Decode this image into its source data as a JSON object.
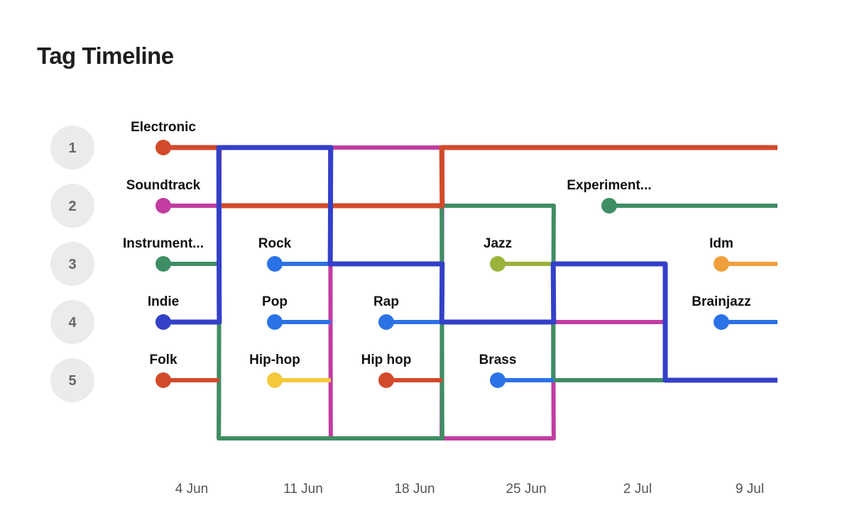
{
  "title": "Tag Timeline",
  "chart_data": {
    "type": "bump",
    "x": [
      "4 Jun",
      "11 Jun",
      "18 Jun",
      "25 Jun",
      "2 Jul",
      "9 Jul"
    ],
    "ranks": [
      1,
      2,
      3,
      4,
      5
    ],
    "dropout_rank": 6,
    "series": [
      {
        "name": "Electronic",
        "label": "Electronic",
        "color": "#d24a2a",
        "emphasis": true,
        "ranks": [
          1,
          2,
          2,
          1,
          1,
          1
        ]
      },
      {
        "name": "Soundtrack",
        "label": "Soundtrack",
        "color": "#c23ca1",
        "emphasis": false,
        "ranks": [
          2,
          6,
          1,
          6,
          4,
          null
        ]
      },
      {
        "name": "Instrumental",
        "label": "Instrument...",
        "color": "#3e8e63",
        "emphasis": false,
        "ranks": [
          3,
          6,
          6,
          2,
          5,
          null
        ]
      },
      {
        "name": "Indie",
        "label": "Indie",
        "color": "#3340c9",
        "emphasis": true,
        "ranks": [
          4,
          1,
          3,
          4,
          3,
          5
        ]
      },
      {
        "name": "Folk",
        "label": "Folk",
        "color": "#d24a2a",
        "emphasis": false,
        "ranks": [
          5,
          null,
          null,
          null,
          null,
          null
        ]
      },
      {
        "name": "Rock",
        "label": "Rock",
        "color": "#2b72e6",
        "emphasis": false,
        "ranks": [
          null,
          3,
          null,
          null,
          null,
          null
        ]
      },
      {
        "name": "Pop",
        "label": "Pop",
        "color": "#2b72e6",
        "emphasis": false,
        "ranks": [
          null,
          4,
          null,
          null,
          null,
          null
        ]
      },
      {
        "name": "Hip-hop",
        "label": "Hip-hop",
        "color": "#f5c83c",
        "emphasis": false,
        "ranks": [
          null,
          5,
          null,
          null,
          null,
          null
        ]
      },
      {
        "name": "Rap",
        "label": "Rap",
        "color": "#2b72e6",
        "emphasis": false,
        "ranks": [
          null,
          null,
          4,
          null,
          null,
          null
        ]
      },
      {
        "name": "Hip hop",
        "label": "Hip hop",
        "color": "#d24a2a",
        "emphasis": false,
        "ranks": [
          null,
          null,
          5,
          null,
          null,
          null
        ]
      },
      {
        "name": "Jazz",
        "label": "Jazz",
        "color": "#9ab33a",
        "emphasis": false,
        "ranks": [
          null,
          null,
          null,
          3,
          null,
          null
        ]
      },
      {
        "name": "Brass",
        "label": "Brass",
        "color": "#2b72e6",
        "emphasis": false,
        "ranks": [
          null,
          null,
          null,
          5,
          null,
          null
        ]
      },
      {
        "name": "Experimental",
        "label": "Experiment...",
        "color": "#3e8e63",
        "emphasis": false,
        "ranks": [
          null,
          null,
          null,
          null,
          2,
          2
        ]
      },
      {
        "name": "Idm",
        "label": "Idm",
        "color": "#f0a03a",
        "emphasis": false,
        "ranks": [
          null,
          null,
          null,
          null,
          null,
          3
        ]
      },
      {
        "name": "Brainjazz",
        "label": "Brainjazz",
        "color": "#2b72e6",
        "emphasis": false,
        "ranks": [
          null,
          null,
          null,
          null,
          null,
          4
        ]
      }
    ],
    "legend": "none",
    "grid": false
  }
}
